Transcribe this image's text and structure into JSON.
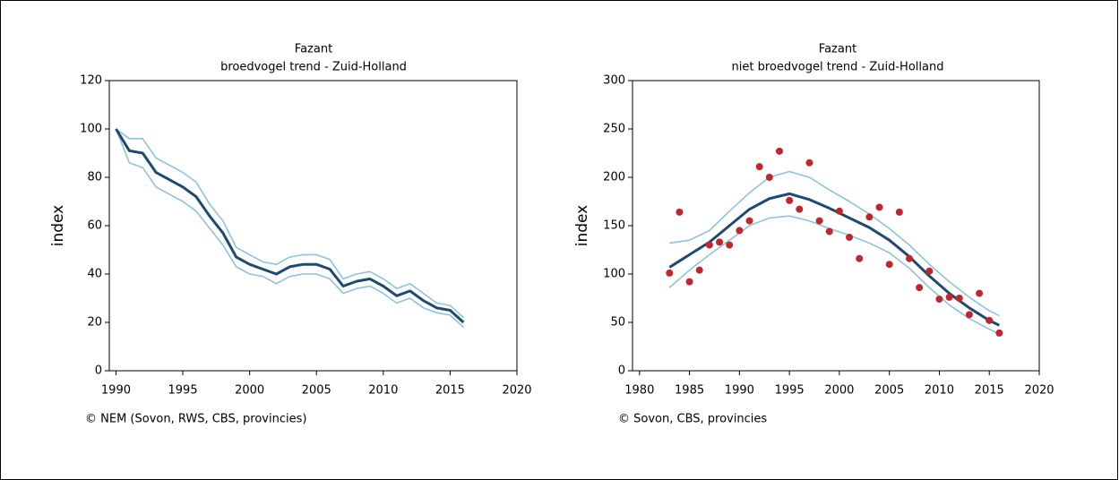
{
  "chart_data": [
    {
      "type": "line",
      "title": "Fazant",
      "subtitle": "broedvogel trend - Zuid-Holland",
      "ylabel": "index",
      "credit": "© NEM (Sovon, RWS, CBS, provincies)",
      "xlim": [
        1989.5,
        2020
      ],
      "xticks": [
        1990,
        1995,
        2000,
        2005,
        2010,
        2015,
        2020
      ],
      "ylim": [
        0,
        120
      ],
      "yticks": [
        0,
        20,
        40,
        60,
        80,
        100,
        120
      ],
      "series": [
        {
          "mark": "line",
          "color": "#8ec3dc",
          "x": [
            1990,
            1991,
            1992,
            1993,
            1994,
            1995,
            1996,
            1997,
            1998,
            1999,
            2000,
            2001,
            2002,
            2003,
            2004,
            2005,
            2006,
            2007,
            2008,
            2009,
            2010,
            2011,
            2012,
            2013,
            2014,
            2015,
            2016
          ],
          "values": [
            100,
            96,
            96,
            88,
            85,
            82,
            78,
            69,
            62,
            51,
            48,
            45,
            44,
            47,
            48,
            48,
            46,
            38,
            40,
            41,
            38,
            34,
            36,
            32,
            28,
            27,
            22
          ]
        },
        {
          "mark": "line",
          "color": "#8ec3dc",
          "x": [
            1990,
            1991,
            1992,
            1993,
            1994,
            1995,
            1996,
            1997,
            1998,
            1999,
            2000,
            2001,
            2002,
            2003,
            2004,
            2005,
            2006,
            2007,
            2008,
            2009,
            2010,
            2011,
            2012,
            2013,
            2014,
            2015,
            2016
          ],
          "values": [
            100,
            86,
            84,
            76,
            73,
            70,
            66,
            59,
            52,
            43,
            40,
            39,
            36,
            39,
            40,
            40,
            38,
            32,
            34,
            35,
            32,
            28,
            30,
            26,
            24,
            23,
            18
          ]
        },
        {
          "mark": "line",
          "color": "#1d4a6e",
          "x": [
            1990,
            1991,
            1992,
            1993,
            1994,
            1995,
            1996,
            1997,
            1998,
            1999,
            2000,
            2001,
            2002,
            2003,
            2004,
            2005,
            2006,
            2007,
            2008,
            2009,
            2010,
            2011,
            2012,
            2013,
            2014,
            2015,
            2016
          ],
          "values": [
            100,
            91,
            90,
            82,
            79,
            76,
            72,
            64,
            57,
            47,
            44,
            42,
            40,
            43,
            44,
            44,
            42,
            35,
            37,
            38,
            35,
            31,
            33,
            29,
            26,
            25,
            20
          ]
        }
      ]
    },
    {
      "type": "line",
      "title": "Fazant",
      "subtitle": "niet broedvogel trend - Zuid-Holland",
      "ylabel": "index",
      "credit": "© Sovon, CBS, provincies",
      "xlim": [
        1979.3,
        2020
      ],
      "xticks": [
        1980,
        1985,
        1990,
        1995,
        2000,
        2005,
        2010,
        2015,
        2020
      ],
      "ylim": [
        0,
        300
      ],
      "yticks": [
        0,
        50,
        100,
        150,
        200,
        250,
        300
      ],
      "series": [
        {
          "mark": "line",
          "color": "#8ec3dc",
          "x": [
            1983,
            1985,
            1987,
            1989,
            1991,
            1993,
            1995,
            1997,
            1999,
            2001,
            2003,
            2005,
            2007,
            2009,
            2011,
            2013,
            2015,
            2016
          ],
          "values": [
            132,
            135,
            145,
            165,
            184,
            200,
            206,
            200,
            187,
            175,
            162,
            147,
            130,
            110,
            92,
            76,
            62,
            57
          ]
        },
        {
          "mark": "line",
          "color": "#8ec3dc",
          "x": [
            1983,
            1985,
            1987,
            1989,
            1991,
            1993,
            1995,
            1997,
            1999,
            2001,
            2003,
            2005,
            2007,
            2009,
            2011,
            2013,
            2015,
            2016
          ],
          "values": [
            86,
            104,
            120,
            135,
            150,
            158,
            160,
            155,
            147,
            140,
            132,
            122,
            106,
            86,
            68,
            54,
            43,
            38
          ]
        },
        {
          "mark": "line",
          "color": "#1d4a6e",
          "x": [
            1983,
            1985,
            1987,
            1989,
            1991,
            1993,
            1995,
            1997,
            1999,
            2001,
            2003,
            2005,
            2007,
            2009,
            2011,
            2013,
            2015,
            2016
          ],
          "values": [
            107,
            120,
            133,
            150,
            167,
            178,
            183,
            177,
            168,
            158,
            148,
            135,
            118,
            98,
            80,
            65,
            52,
            47
          ]
        },
        {
          "mark": "point",
          "color": "#c0272d",
          "x": [
            1983,
            1984,
            1985,
            1986,
            1987,
            1988,
            1989,
            1990,
            1991,
            1992,
            1993,
            1994,
            1995,
            1996,
            1997,
            1998,
            1999,
            2000,
            2001,
            2002,
            2003,
            2004,
            2005,
            2006,
            2007,
            2008,
            2009,
            2010,
            2011,
            2012,
            2013,
            2014,
            2015,
            2016
          ],
          "values": [
            101,
            164,
            92,
            104,
            130,
            133,
            130,
            145,
            155,
            211,
            200,
            227,
            176,
            167,
            215,
            155,
            144,
            165,
            138,
            116,
            159,
            169,
            110,
            164,
            116,
            86,
            103,
            74,
            76,
            75,
            58,
            80,
            52,
            39
          ]
        }
      ]
    }
  ]
}
